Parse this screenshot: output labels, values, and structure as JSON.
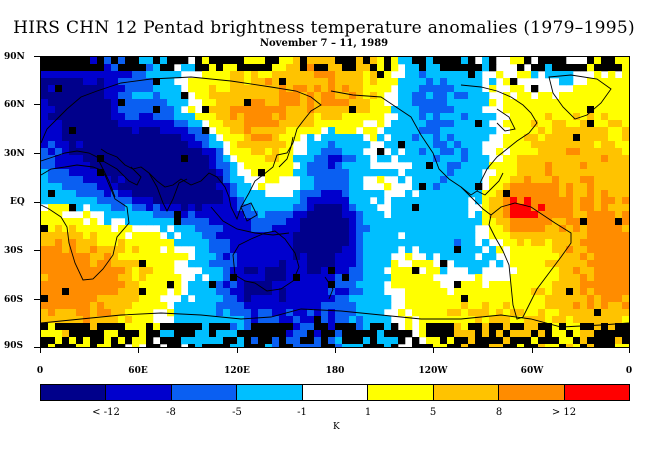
{
  "title": "HIRS CHN 12 Pentad brightness temperature anomalies (1979–1995)",
  "subtitle": "November 7 – 11, 1989",
  "lat_labels": [
    "90N",
    "60N",
    "30N",
    "EQ",
    "30S",
    "60S",
    "90S"
  ],
  "lon_labels": [
    "0",
    "60E",
    "120E",
    "180",
    "120W",
    "60W",
    "0"
  ],
  "colorbar": {
    "colors": [
      "#00008b",
      "#0000cd",
      "#0a5ff2",
      "#00bfff",
      "#ffffff",
      "#ffff00",
      "#ffc300",
      "#ff8c00",
      "#ff0000"
    ],
    "labels": [
      "< -12",
      "-8",
      "-5",
      "-1",
      "1",
      "5",
      "8",
      "> 12"
    ],
    "unit": "K"
  },
  "colors": {
    "missing": "#000000",
    "coast": "#000000"
  }
}
